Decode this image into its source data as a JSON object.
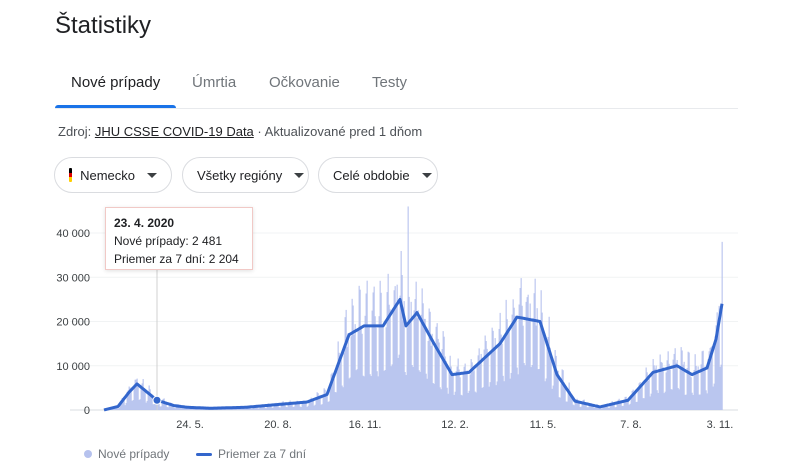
{
  "page": {
    "title": "Štatistiky"
  },
  "tabs": [
    "Nové prípady",
    "Úmrtia",
    "Očkovanie",
    "Testy"
  ],
  "source": {
    "prefix": "Zdroj:",
    "link": "JHU CSSE COVID-19 Data",
    "updated": "· Aktualizované pred 1 dňom"
  },
  "filters": {
    "country": "Nemecko",
    "region": "Všetky regióny",
    "period": "Celé obdobie"
  },
  "tooltip": {
    "date": "23. 4. 2020",
    "new_cases": "Nové prípady: 2 481",
    "avg": "Priemer za 7 dní: 2 204"
  },
  "legend": {
    "bars": "Nové prípady",
    "line": "Priemer za 7 dní"
  },
  "colors": {
    "bars": "#b6c2ee",
    "line": "#3366cc",
    "active_tab": "#1a73e8",
    "flag": [
      "#000000",
      "#dd0000",
      "#ffce00"
    ]
  },
  "chart_data": {
    "type": "bar",
    "ylim": [
      0,
      45000
    ],
    "yticks": [
      "40 000",
      "30 000",
      "20 000",
      "10 000",
      "0"
    ],
    "ytick_values": [
      40000,
      30000,
      20000,
      10000,
      0
    ],
    "xticks": [
      "24. 5.",
      "20. 8.",
      "16. 11.",
      "12. 2.",
      "11. 5.",
      "7. 8.",
      "3. 11."
    ],
    "series": [
      {
        "name": "Priemer za 7 dní",
        "x": [
          "1. 3. 2020",
          "15. 3. 2020",
          "26. 3. 2020",
          "3. 4. 2020",
          "23. 4. 2020",
          "10. 5. 2020",
          "24. 5. 2020",
          "15. 6. 2020",
          "20. 7. 2020",
          "20. 8. 2020",
          "20. 9. 2020",
          "10. 10. 2020",
          "1. 11. 2020",
          "16. 11. 2020",
          "5. 12. 2020",
          "22. 12. 2020",
          "28. 12. 2020",
          "8. 1. 2021",
          "25. 1. 2021",
          "12. 2. 2021",
          "1. 3. 2021",
          "1. 4. 2021",
          "18. 4. 2021",
          "11. 5. 2021",
          "28. 5. 2021",
          "15. 6. 2021",
          "10. 7. 2021",
          "7. 8. 2021",
          "1. 9. 2021",
          "25. 9. 2021",
          "10. 10. 2021",
          "25. 10. 2021",
          "3. 11. 2021",
          "9. 11. 2021"
        ],
        "values": [
          0,
          800,
          4000,
          5900,
          2204,
          1000,
          600,
          400,
          600,
          1200,
          1800,
          3500,
          17000,
          19000,
          19000,
          25000,
          19000,
          22000,
          15000,
          8000,
          8500,
          15000,
          21000,
          20000,
          8000,
          2000,
          700,
          2200,
          8500,
          10000,
          8000,
          9500,
          16000,
          24000
        ]
      },
      {
        "name": "Nové prípady",
        "peaks": [
          {
            "x": "23. 4. 2020",
            "y": 2481
          },
          {
            "x": "30. 12. 2020",
            "y": 46000
          },
          {
            "x": "9. 11. 2021",
            "y": 38000
          }
        ]
      }
    ]
  }
}
